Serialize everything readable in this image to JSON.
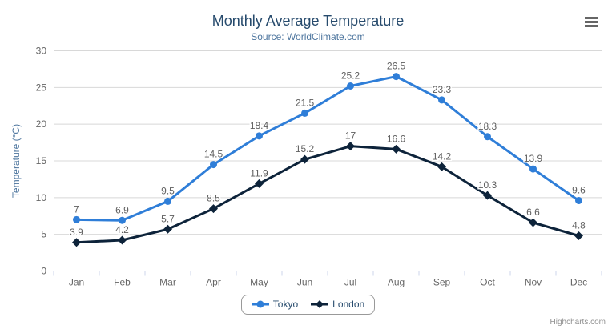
{
  "header": {
    "title": "Monthly Average Temperature",
    "subtitle": "Source: WorldClimate.com"
  },
  "credits_label": "Highcharts.com",
  "icons": {
    "menu": "hamburger-menu-icon"
  },
  "colors": {
    "title": "#274b6d",
    "subtitle": "#4d759e",
    "axis_label": "#666666",
    "axis_title": "#4d759e",
    "data_label": "#606060",
    "grid_line": "#d8d8d8",
    "axis_line": "#ccd6eb",
    "legend_border": "#999999",
    "legend_text": "#274b6d",
    "credits_text": "#909090",
    "menu_icon": "#666666",
    "background": "#ffffff"
  },
  "chart_data": {
    "type": "line",
    "title": "Monthly Average Temperature",
    "subtitle": "Source: WorldClimate.com",
    "categories": [
      "Jan",
      "Feb",
      "Mar",
      "Apr",
      "May",
      "Jun",
      "Jul",
      "Aug",
      "Sep",
      "Oct",
      "Nov",
      "Dec"
    ],
    "series": [
      {
        "name": "Tokyo",
        "color": "#2f7ed8",
        "marker": "circle",
        "values": [
          7,
          6.9,
          9.5,
          14.5,
          18.4,
          21.5,
          25.2,
          26.5,
          23.3,
          18.3,
          13.9,
          9.6
        ]
      },
      {
        "name": "London",
        "color": "#0d233a",
        "marker": "diamond",
        "values": [
          3.9,
          4.2,
          5.7,
          8.5,
          11.9,
          15.2,
          17,
          16.6,
          14.2,
          10.3,
          6.6,
          4.8
        ]
      }
    ],
    "xlabel": "",
    "ylabel": "Temperature (°C)",
    "ylim": [
      0,
      30
    ],
    "y_ticks": [
      0,
      5,
      10,
      15,
      20,
      25,
      30
    ],
    "grid": true,
    "data_labels": true,
    "legend_position": "bottom-center"
  }
}
